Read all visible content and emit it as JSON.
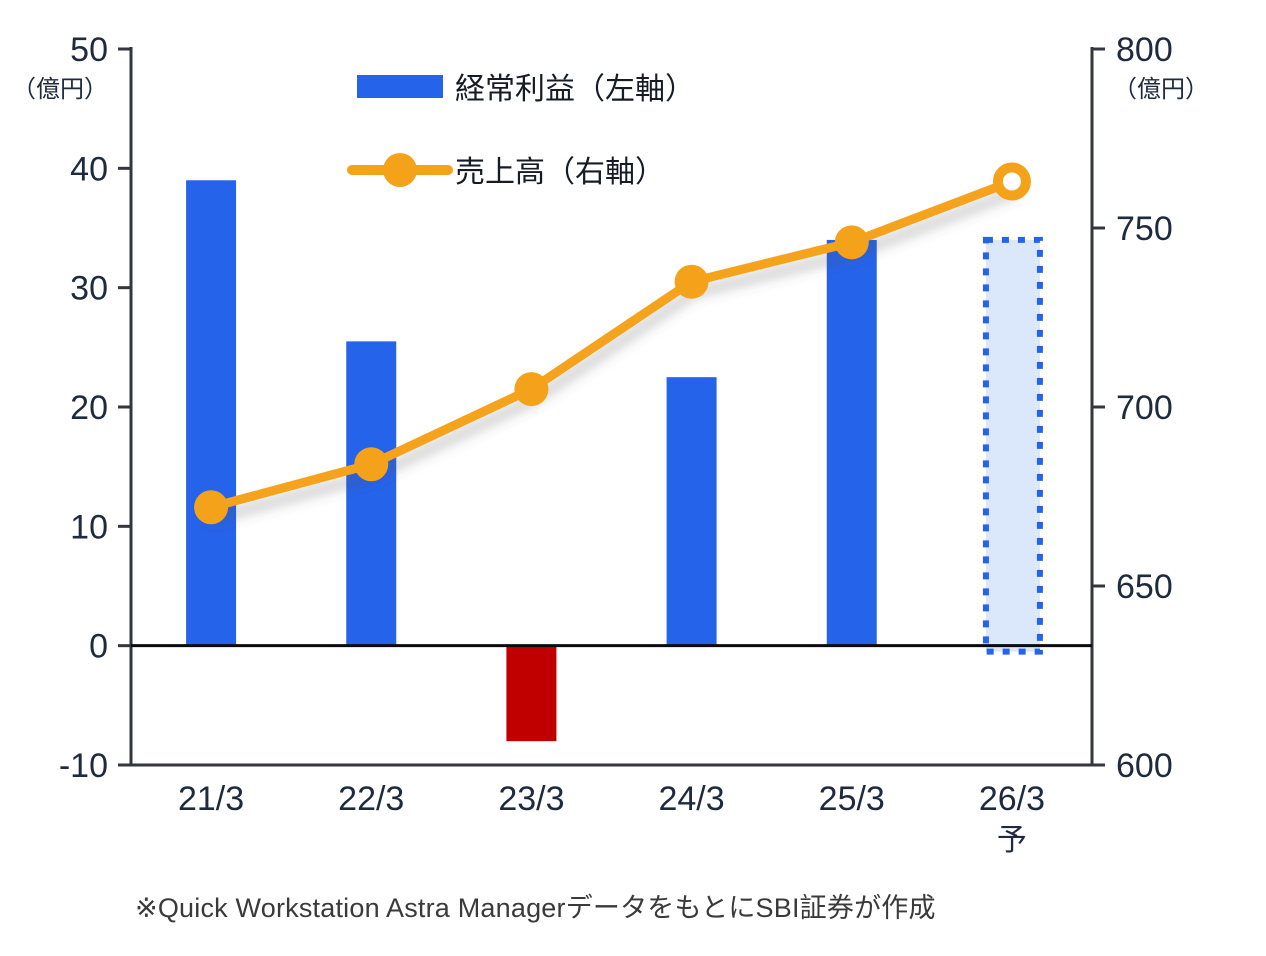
{
  "figure": {
    "footnote": "※Quick Workstation Astra ManagerデータをもとにSBI証券が作成"
  },
  "chart_data": {
    "type": "bar",
    "subtype": "dual-axis bar + line",
    "categories": [
      "21/3",
      "22/3",
      "23/3",
      "24/3",
      "25/3",
      "26/3"
    ],
    "category_sublabels": [
      "",
      "",
      "",
      "",
      "",
      "予"
    ],
    "series": [
      {
        "name": "経常利益（左軸）",
        "type": "bar",
        "axis": "left",
        "values": [
          39,
          25.5,
          -8,
          22.5,
          34,
          34
        ],
        "bar_styles": [
          "blue",
          "blue",
          "red",
          "blue",
          "blue",
          "forecast"
        ]
      },
      {
        "name": "売上高（右軸）",
        "type": "line",
        "axis": "right",
        "values": [
          672,
          684,
          705,
          735,
          746,
          763
        ],
        "marker_styles": [
          "filled",
          "filled",
          "filled",
          "filled",
          "filled",
          "hollow"
        ]
      }
    ],
    "left_axis": {
      "min": -10,
      "max": 50,
      "ticks": [
        50,
        40,
        30,
        20,
        10,
        0,
        -10
      ],
      "unit": "（億円）"
    },
    "right_axis": {
      "min": 600,
      "max": 800,
      "ticks": [
        800,
        750,
        700,
        650,
        600
      ],
      "unit": "（億円）"
    },
    "legend_position": "top-center-inside",
    "grid": false,
    "colors": {
      "bar_blue": "#2563EB",
      "bar_red": "#C00000",
      "forecast_fill": "#DBE8FB",
      "forecast_border": "#2563EB",
      "line_orange": "#F5A21B",
      "marker_hollow_fill": "#FFFFFF",
      "axis_text": "#1E2A3E",
      "legend_text": "#161B26",
      "axis_line": "#33373D",
      "zero_line": "#0B0B0B"
    }
  }
}
